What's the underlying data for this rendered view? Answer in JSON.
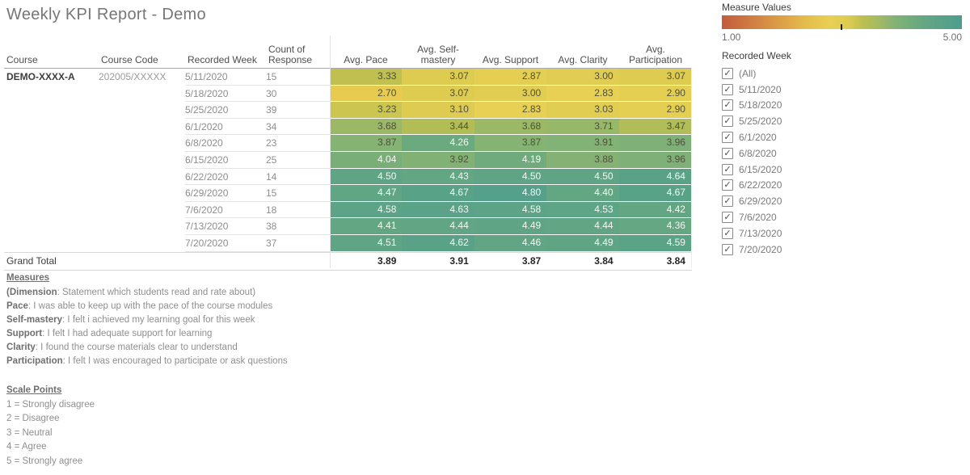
{
  "title": "Weekly KPI Report - Demo",
  "table": {
    "columns": [
      "Course",
      "Course Code",
      "Recorded Week",
      "Count of Response",
      "Avg. Pace",
      "Avg. Self-mastery",
      "Avg. Support",
      "Avg. Clarity",
      "Avg. Participation"
    ],
    "course": "DEMO-XXXX-A",
    "course_code": "202005/XXXXX",
    "rows": [
      {
        "week": "5/11/2020",
        "count": "15",
        "values": [
          "3.33",
          "3.07",
          "2.87",
          "3.00",
          "3.07"
        ]
      },
      {
        "week": "5/18/2020",
        "count": "30",
        "values": [
          "2.70",
          "3.07",
          "3.00",
          "2.83",
          "2.90"
        ]
      },
      {
        "week": "5/25/2020",
        "count": "39",
        "values": [
          "3.23",
          "3.10",
          "2.83",
          "3.03",
          "2.90"
        ]
      },
      {
        "week": "6/1/2020",
        "count": "34",
        "values": [
          "3.68",
          "3.44",
          "3.68",
          "3.71",
          "3.47"
        ]
      },
      {
        "week": "6/8/2020",
        "count": "23",
        "values": [
          "3.87",
          "4.26",
          "3.87",
          "3.91",
          "3.96"
        ]
      },
      {
        "week": "6/15/2020",
        "count": "25",
        "values": [
          "4.04",
          "3.92",
          "4.19",
          "3.88",
          "3.96"
        ]
      },
      {
        "week": "6/22/2020",
        "count": "14",
        "values": [
          "4.50",
          "4.43",
          "4.50",
          "4.50",
          "4.64"
        ]
      },
      {
        "week": "6/29/2020",
        "count": "15",
        "values": [
          "4.47",
          "4.67",
          "4.80",
          "4.40",
          "4.67"
        ]
      },
      {
        "week": "7/6/2020",
        "count": "18",
        "values": [
          "4.58",
          "4.63",
          "4.58",
          "4.53",
          "4.42"
        ]
      },
      {
        "week": "7/13/2020",
        "count": "38",
        "values": [
          "4.41",
          "4.44",
          "4.49",
          "4.44",
          "4.36"
        ]
      },
      {
        "week": "7/20/2020",
        "count": "37",
        "values": [
          "4.51",
          "4.62",
          "4.46",
          "4.49",
          "4.59"
        ]
      }
    ],
    "grand_total": {
      "label": "Grand Total",
      "values": [
        "3.89",
        "3.91",
        "3.87",
        "3.84",
        "3.84"
      ]
    }
  },
  "legend": {
    "title": "Measure Values",
    "min_label": "1.00",
    "max_label": "5.00",
    "domain": [
      1.0,
      5.0
    ],
    "stops": [
      {
        "v": 1.0,
        "c": "#c35b3d"
      },
      {
        "v": 1.8,
        "c": "#d89245"
      },
      {
        "v": 2.4,
        "c": "#e4bd4c"
      },
      {
        "v": 2.8,
        "c": "#e8d053"
      },
      {
        "v": 3.1,
        "c": "#ddcc51"
      },
      {
        "v": 3.35,
        "c": "#bcbf50"
      },
      {
        "v": 3.6,
        "c": "#a4ba62"
      },
      {
        "v": 3.85,
        "c": "#87b373"
      },
      {
        "v": 4.1,
        "c": "#74ad7b"
      },
      {
        "v": 4.4,
        "c": "#63a683"
      },
      {
        "v": 4.7,
        "c": "#57a189"
      },
      {
        "v": 5.0,
        "c": "#4e9d8c"
      }
    ],
    "text_dark": "#4f4f3c",
    "text_light": "#f7f8f3",
    "light_text_threshold": 4.0
  },
  "filter": {
    "title": "Recorded Week",
    "check_glyph": "✓",
    "items": [
      {
        "label": "(All)",
        "checked": true
      },
      {
        "label": "5/11/2020",
        "checked": true
      },
      {
        "label": "5/18/2020",
        "checked": true
      },
      {
        "label": "5/25/2020",
        "checked": true
      },
      {
        "label": "6/1/2020",
        "checked": true
      },
      {
        "label": "6/8/2020",
        "checked": true
      },
      {
        "label": "6/15/2020",
        "checked": true
      },
      {
        "label": "6/22/2020",
        "checked": true
      },
      {
        "label": "6/29/2020",
        "checked": true
      },
      {
        "label": "7/6/2020",
        "checked": true
      },
      {
        "label": "7/13/2020",
        "checked": true
      },
      {
        "label": "7/20/2020",
        "checked": true
      }
    ]
  },
  "notes": {
    "heading": "Measures",
    "lines": [
      {
        "lead": "(Dimension",
        "rest": ": Statement which students read and rate about)"
      },
      {
        "lead": "Pace",
        "rest": ": I was able to keep up with the pace of the course modules"
      },
      {
        "lead": "Self-mastery",
        "rest": ": I felt i achieved my learning goal for this week"
      },
      {
        "lead": "Support",
        "rest": ": I felt I had adequate support for learning"
      },
      {
        "lead": "Clarity",
        "rest": ": I found the course materials clear to understand"
      },
      {
        "lead": "Participation",
        "rest": ": I felt I was encouraged to participate or ask questions"
      }
    ]
  },
  "scale": {
    "heading": "Scale Points",
    "items": [
      "1 = Strongly disagree",
      "2 = Disagree",
      "3 = Neutral",
      "4 = Agree",
      "5 = Strongly agree"
    ]
  }
}
